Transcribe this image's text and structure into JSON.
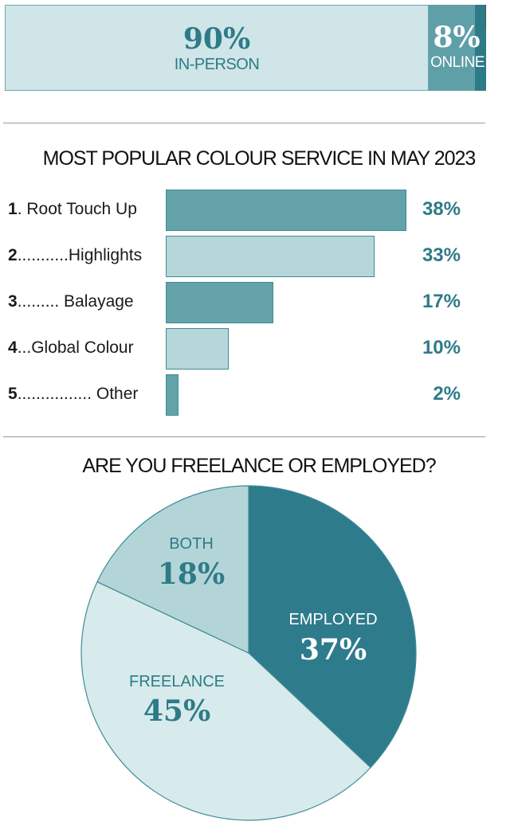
{
  "split_bar": {
    "in_person": {
      "pct": "90%",
      "label": "IN-PERSON"
    },
    "online": {
      "pct": "8%",
      "label": "ONLINE"
    }
  },
  "chart_data": [
    {
      "type": "bar",
      "title": "MOST POPULAR COLOUR SERVICE IN MAY 2023",
      "rows": [
        {
          "num": "1",
          "dots": ". ",
          "label": "Root Touch Up",
          "value": 38,
          "value_label": "38%"
        },
        {
          "num": "2",
          "dots": "...........",
          "label": "Highlights",
          "value": 33,
          "value_label": "33%"
        },
        {
          "num": "3",
          "dots": "......... ",
          "label": "Balayage",
          "value": 17,
          "value_label": "17%"
        },
        {
          "num": "4",
          "dots": "...",
          "label": "Global Colour",
          "value": 10,
          "value_label": "10%"
        },
        {
          "num": "5",
          "dots": "................ ",
          "label": "Other",
          "value": 2,
          "value_label": "2%"
        }
      ],
      "xlim": [
        0,
        38
      ]
    },
    {
      "type": "pie",
      "title": "ARE YOU FREELANCE OR EMPLOYED?",
      "slices": [
        {
          "label": "EMPLOYED",
          "value": 37,
          "value_label": "37%",
          "color": "#2e7b8c"
        },
        {
          "label": "FREELANCE",
          "value": 45,
          "value_label": "45%",
          "color": "#d7eaec"
        },
        {
          "label": "BOTH",
          "value": 18,
          "value_label": "18%",
          "color": "#b4d5d8"
        }
      ]
    }
  ],
  "colors": {
    "accent": "#2e7b88",
    "bar_dark": "#64a2aa",
    "bar_light": "#b5d7d9"
  }
}
